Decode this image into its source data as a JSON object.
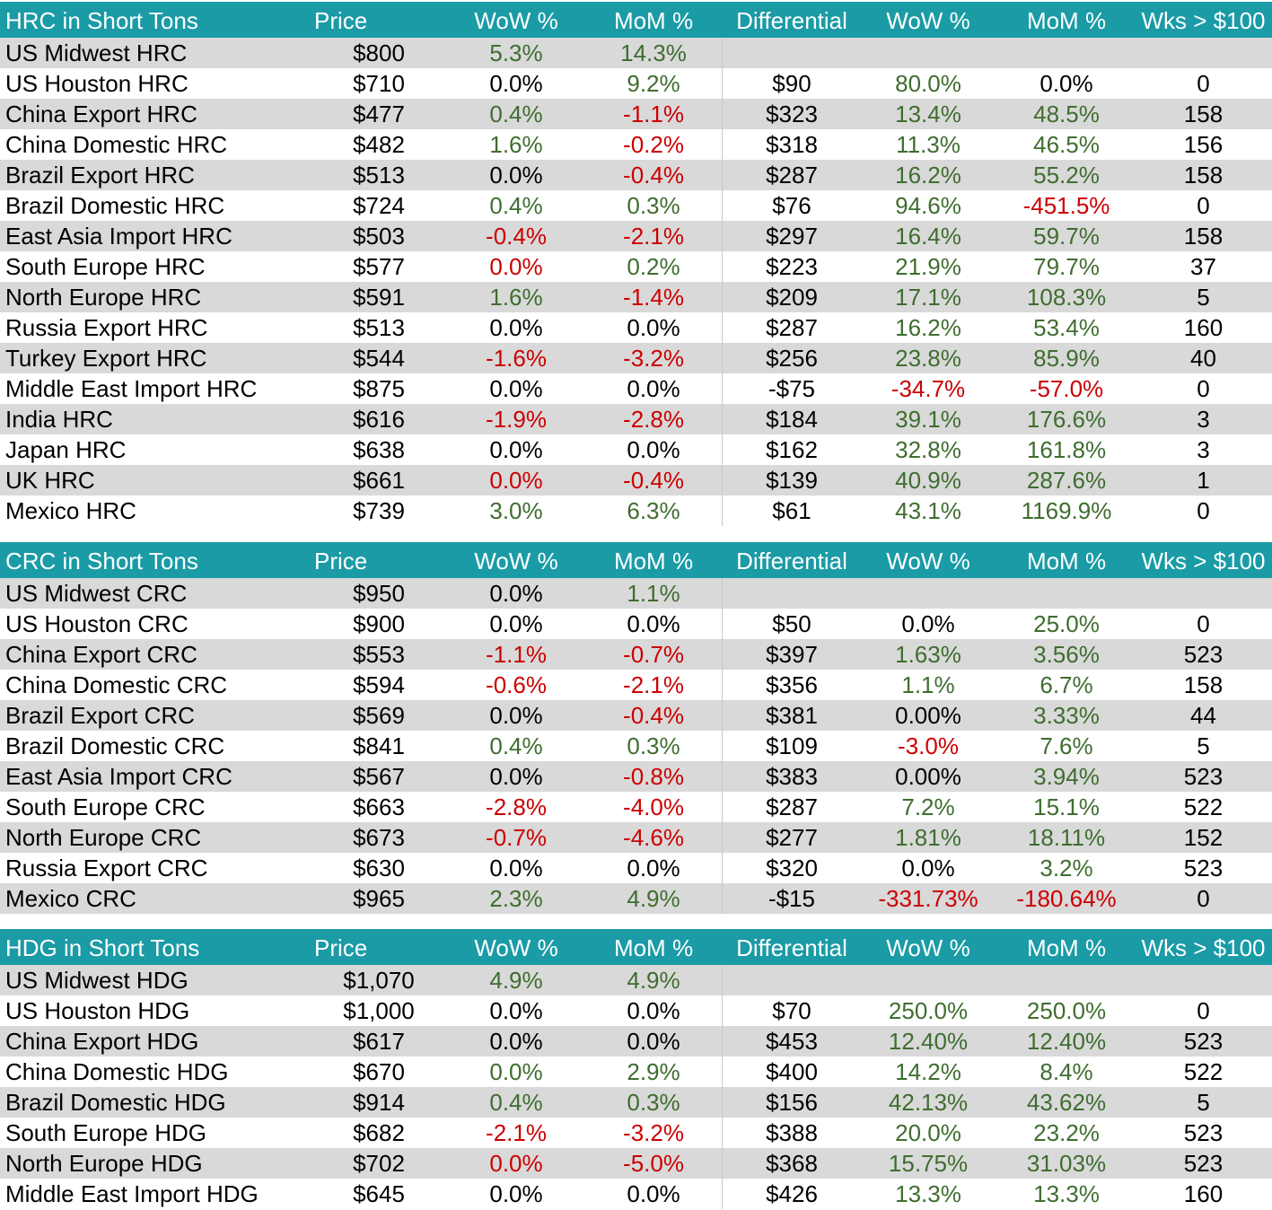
{
  "colors": {
    "header_bg": "#1a9ba6",
    "shade_row": "#d9d9d9",
    "positive": "#3f6d2f",
    "negative": "#cc0000",
    "neutral": "#000000"
  },
  "sections": [
    {
      "id": "hrc",
      "header": {
        "name": "HRC in Short Tons",
        "price": "Price",
        "wow": "WoW %",
        "mom": "MoM %",
        "diff": "Differential",
        "dwow": "WoW %",
        "dmom": "MoM %",
        "wks": "Wks > $100"
      },
      "rows": [
        {
          "name": "US Midwest HRC",
          "price": "$800",
          "wow": "5.3%",
          "wow_tone": "pos",
          "mom": "14.3%",
          "mom_tone": "pos",
          "diff": "",
          "dwow": "",
          "dwow_tone": "neu",
          "dmom": "",
          "dmom_tone": "neu",
          "wks": ""
        },
        {
          "name": "US Houston HRC",
          "price": "$710",
          "wow": "0.0%",
          "wow_tone": "neu",
          "mom": "9.2%",
          "mom_tone": "pos",
          "diff": "$90",
          "dwow": "80.0%",
          "dwow_tone": "pos",
          "dmom": "0.0%",
          "dmom_tone": "neu",
          "wks": "0"
        },
        {
          "name": "China Export HRC",
          "price": "$477",
          "wow": "0.4%",
          "wow_tone": "pos",
          "mom": "-1.1%",
          "mom_tone": "neg",
          "diff": "$323",
          "dwow": "13.4%",
          "dwow_tone": "pos",
          "dmom": "48.5%",
          "dmom_tone": "pos",
          "wks": "158"
        },
        {
          "name": "China Domestic HRC",
          "price": "$482",
          "wow": "1.6%",
          "wow_tone": "pos",
          "mom": "-0.2%",
          "mom_tone": "neg",
          "diff": "$318",
          "dwow": "11.3%",
          "dwow_tone": "pos",
          "dmom": "46.5%",
          "dmom_tone": "pos",
          "wks": "156"
        },
        {
          "name": "Brazil Export HRC",
          "price": "$513",
          "wow": "0.0%",
          "wow_tone": "neu",
          "mom": "-0.4%",
          "mom_tone": "neg",
          "diff": "$287",
          "dwow": "16.2%",
          "dwow_tone": "pos",
          "dmom": "55.2%",
          "dmom_tone": "pos",
          "wks": "158"
        },
        {
          "name": "Brazil Domestic HRC",
          "price": "$724",
          "wow": "0.4%",
          "wow_tone": "pos",
          "mom": "0.3%",
          "mom_tone": "pos",
          "diff": "$76",
          "dwow": "94.6%",
          "dwow_tone": "pos",
          "dmom": "-451.5%",
          "dmom_tone": "neg",
          "wks": "0"
        },
        {
          "name": "East Asia Import HRC",
          "price": "$503",
          "wow": "-0.4%",
          "wow_tone": "neg",
          "mom": "-2.1%",
          "mom_tone": "neg",
          "diff": "$297",
          "dwow": "16.4%",
          "dwow_tone": "pos",
          "dmom": "59.7%",
          "dmom_tone": "pos",
          "wks": "158"
        },
        {
          "name": "South Europe HRC",
          "price": "$577",
          "wow": "0.0%",
          "wow_tone": "neg",
          "mom": "0.2%",
          "mom_tone": "pos",
          "diff": "$223",
          "dwow": "21.9%",
          "dwow_tone": "pos",
          "dmom": "79.7%",
          "dmom_tone": "pos",
          "wks": "37"
        },
        {
          "name": "North Europe HRC",
          "price": "$591",
          "wow": "1.6%",
          "wow_tone": "pos",
          "mom": "-1.4%",
          "mom_tone": "neg",
          "diff": "$209",
          "dwow": "17.1%",
          "dwow_tone": "pos",
          "dmom": "108.3%",
          "dmom_tone": "pos",
          "wks": "5"
        },
        {
          "name": "Russia Export HRC",
          "price": "$513",
          "wow": "0.0%",
          "wow_tone": "neu",
          "mom": "0.0%",
          "mom_tone": "neu",
          "diff": "$287",
          "dwow": "16.2%",
          "dwow_tone": "pos",
          "dmom": "53.4%",
          "dmom_tone": "pos",
          "wks": "160"
        },
        {
          "name": "Turkey Export HRC",
          "price": "$544",
          "wow": "-1.6%",
          "wow_tone": "neg",
          "mom": "-3.2%",
          "mom_tone": "neg",
          "diff": "$256",
          "dwow": "23.8%",
          "dwow_tone": "pos",
          "dmom": "85.9%",
          "dmom_tone": "pos",
          "wks": "40"
        },
        {
          "name": "Middle East Import HRC",
          "price": "$875",
          "wow": "0.0%",
          "wow_tone": "neu",
          "mom": "0.0%",
          "mom_tone": "neu",
          "diff": "-$75",
          "dwow": "-34.7%",
          "dwow_tone": "neg",
          "dmom": "-57.0%",
          "dmom_tone": "neg",
          "wks": "0"
        },
        {
          "name": "India HRC",
          "price": "$616",
          "wow": "-1.9%",
          "wow_tone": "neg",
          "mom": "-2.8%",
          "mom_tone": "neg",
          "diff": "$184",
          "dwow": "39.1%",
          "dwow_tone": "pos",
          "dmom": "176.6%",
          "dmom_tone": "pos",
          "wks": "3"
        },
        {
          "name": "Japan HRC",
          "price": "$638",
          "wow": "0.0%",
          "wow_tone": "neu",
          "mom": "0.0%",
          "mom_tone": "neu",
          "diff": "$162",
          "dwow": "32.8%",
          "dwow_tone": "pos",
          "dmom": "161.8%",
          "dmom_tone": "pos",
          "wks": "3"
        },
        {
          "name": "UK HRC",
          "price": "$661",
          "wow": "0.0%",
          "wow_tone": "neg",
          "mom": "-0.4%",
          "mom_tone": "neg",
          "diff": "$139",
          "dwow": "40.9%",
          "dwow_tone": "pos",
          "dmom": "287.6%",
          "dmom_tone": "pos",
          "wks": "1"
        },
        {
          "name": "Mexico HRC",
          "price": "$739",
          "wow": "3.0%",
          "wow_tone": "pos",
          "mom": "6.3%",
          "mom_tone": "pos",
          "diff": "$61",
          "dwow": "43.1%",
          "dwow_tone": "pos",
          "dmom": "1169.9%",
          "dmom_tone": "pos",
          "wks": "0"
        }
      ]
    },
    {
      "id": "crc",
      "header": {
        "name": "CRC in Short Tons",
        "price": "Price",
        "wow": "WoW %",
        "mom": "MoM %",
        "diff": "Differential",
        "dwow": "WoW %",
        "dmom": "MoM %",
        "wks": "Wks > $100"
      },
      "rows": [
        {
          "name": "US Midwest CRC",
          "price": "$950",
          "wow": "0.0%",
          "wow_tone": "neu",
          "mom": "1.1%",
          "mom_tone": "pos",
          "diff": "",
          "dwow": "",
          "dwow_tone": "neu",
          "dmom": "",
          "dmom_tone": "neu",
          "wks": ""
        },
        {
          "name": "US Houston CRC",
          "price": "$900",
          "wow": "0.0%",
          "wow_tone": "neu",
          "mom": "0.0%",
          "mom_tone": "neu",
          "diff": "$50",
          "dwow": "0.0%",
          "dwow_tone": "neu",
          "dmom": "25.0%",
          "dmom_tone": "pos",
          "wks": "0"
        },
        {
          "name": "China Export CRC",
          "price": "$553",
          "wow": "-1.1%",
          "wow_tone": "neg",
          "mom": "-0.7%",
          "mom_tone": "neg",
          "diff": "$397",
          "dwow": "1.63%",
          "dwow_tone": "pos",
          "dmom": "3.56%",
          "dmom_tone": "pos",
          "wks": "523"
        },
        {
          "name": "China Domestic CRC",
          "price": "$594",
          "wow": "-0.6%",
          "wow_tone": "neg",
          "mom": "-2.1%",
          "mom_tone": "neg",
          "diff": "$356",
          "dwow": "1.1%",
          "dwow_tone": "pos",
          "dmom": "6.7%",
          "dmom_tone": "pos",
          "wks": "158"
        },
        {
          "name": "Brazil Export CRC",
          "price": "$569",
          "wow": "0.0%",
          "wow_tone": "neu",
          "mom": "-0.4%",
          "mom_tone": "neg",
          "diff": "$381",
          "dwow": "0.00%",
          "dwow_tone": "neu",
          "dmom": "3.33%",
          "dmom_tone": "pos",
          "wks": "44"
        },
        {
          "name": "Brazil Domestic CRC",
          "price": "$841",
          "wow": "0.4%",
          "wow_tone": "pos",
          "mom": "0.3%",
          "mom_tone": "pos",
          "diff": "$109",
          "dwow": "-3.0%",
          "dwow_tone": "neg",
          "dmom": "7.6%",
          "dmom_tone": "pos",
          "wks": "5"
        },
        {
          "name": "East Asia Import CRC",
          "price": "$567",
          "wow": "0.0%",
          "wow_tone": "neu",
          "mom": "-0.8%",
          "mom_tone": "neg",
          "diff": "$383",
          "dwow": "0.00%",
          "dwow_tone": "neu",
          "dmom": "3.94%",
          "dmom_tone": "pos",
          "wks": "523"
        },
        {
          "name": "South Europe CRC",
          "price": "$663",
          "wow": "-2.8%",
          "wow_tone": "neg",
          "mom": "-4.0%",
          "mom_tone": "neg",
          "diff": "$287",
          "dwow": "7.2%",
          "dwow_tone": "pos",
          "dmom": "15.1%",
          "dmom_tone": "pos",
          "wks": "522"
        },
        {
          "name": "North Europe CRC",
          "price": "$673",
          "wow": "-0.7%",
          "wow_tone": "neg",
          "mom": "-4.6%",
          "mom_tone": "neg",
          "diff": "$277",
          "dwow": "1.81%",
          "dwow_tone": "pos",
          "dmom": "18.11%",
          "dmom_tone": "pos",
          "wks": "152"
        },
        {
          "name": "Russia Export CRC",
          "price": "$630",
          "wow": "0.0%",
          "wow_tone": "neu",
          "mom": "0.0%",
          "mom_tone": "neu",
          "diff": "$320",
          "dwow": "0.0%",
          "dwow_tone": "neu",
          "dmom": "3.2%",
          "dmom_tone": "pos",
          "wks": "523"
        },
        {
          "name": "Mexico CRC",
          "price": "$965",
          "wow": "2.3%",
          "wow_tone": "pos",
          "mom": "4.9%",
          "mom_tone": "pos",
          "diff": "-$15",
          "dwow": "-331.73%",
          "dwow_tone": "neg",
          "dmom": "-180.64%",
          "dmom_tone": "neg",
          "wks": "0"
        }
      ]
    },
    {
      "id": "hdg",
      "header": {
        "name": "HDG in Short Tons",
        "price": "Price",
        "wow": "WoW %",
        "mom": "MoM %",
        "diff": "Differential",
        "dwow": "WoW %",
        "dmom": "MoM %",
        "wks": "Wks > $100"
      },
      "rows": [
        {
          "name": "US Midwest HDG",
          "price": "$1,070",
          "wow": "4.9%",
          "wow_tone": "pos",
          "mom": "4.9%",
          "mom_tone": "pos",
          "diff": "",
          "dwow": "",
          "dwow_tone": "neu",
          "dmom": "",
          "dmom_tone": "neu",
          "wks": ""
        },
        {
          "name": "US Houston HDG",
          "price": "$1,000",
          "wow": "0.0%",
          "wow_tone": "neu",
          "mom": "0.0%",
          "mom_tone": "neu",
          "diff": "$70",
          "dwow": "250.0%",
          "dwow_tone": "pos",
          "dmom": "250.0%",
          "dmom_tone": "pos",
          "wks": "0"
        },
        {
          "name": "China Export HDG",
          "price": "$617",
          "wow": "0.0%",
          "wow_tone": "neu",
          "mom": "0.0%",
          "mom_tone": "neu",
          "diff": "$453",
          "dwow": "12.40%",
          "dwow_tone": "pos",
          "dmom": "12.40%",
          "dmom_tone": "pos",
          "wks": "523"
        },
        {
          "name": "China Domestic HDG",
          "price": "$670",
          "wow": "0.0%",
          "wow_tone": "pos",
          "mom": "2.9%",
          "mom_tone": "pos",
          "diff": "$400",
          "dwow": "14.2%",
          "dwow_tone": "pos",
          "dmom": "8.4%",
          "dmom_tone": "pos",
          "wks": "522"
        },
        {
          "name": "Brazil Domestic HDG",
          "price": "$914",
          "wow": "0.4%",
          "wow_tone": "pos",
          "mom": "0.3%",
          "mom_tone": "pos",
          "diff": "$156",
          "dwow": "42.13%",
          "dwow_tone": "pos",
          "dmom": "43.62%",
          "dmom_tone": "pos",
          "wks": "5"
        },
        {
          "name": "South Europe HDG",
          "price": "$682",
          "wow": "-2.1%",
          "wow_tone": "neg",
          "mom": "-3.2%",
          "mom_tone": "neg",
          "diff": "$388",
          "dwow": "20.0%",
          "dwow_tone": "pos",
          "dmom": "23.2%",
          "dmom_tone": "pos",
          "wks": "523"
        },
        {
          "name": "North Europe HDG",
          "price": "$702",
          "wow": "0.0%",
          "wow_tone": "neg",
          "mom": "-5.0%",
          "mom_tone": "neg",
          "diff": "$368",
          "dwow": "15.75%",
          "dwow_tone": "pos",
          "dmom": "31.03%",
          "dmom_tone": "pos",
          "wks": "523"
        },
        {
          "name": "Middle East Import HDG",
          "price": "$645",
          "wow": "0.0%",
          "wow_tone": "neu",
          "mom": "0.0%",
          "mom_tone": "neu",
          "diff": "$426",
          "dwow": "13.3%",
          "dwow_tone": "pos",
          "dmom": "13.3%",
          "dmom_tone": "pos",
          "wks": "160"
        }
      ]
    }
  ]
}
